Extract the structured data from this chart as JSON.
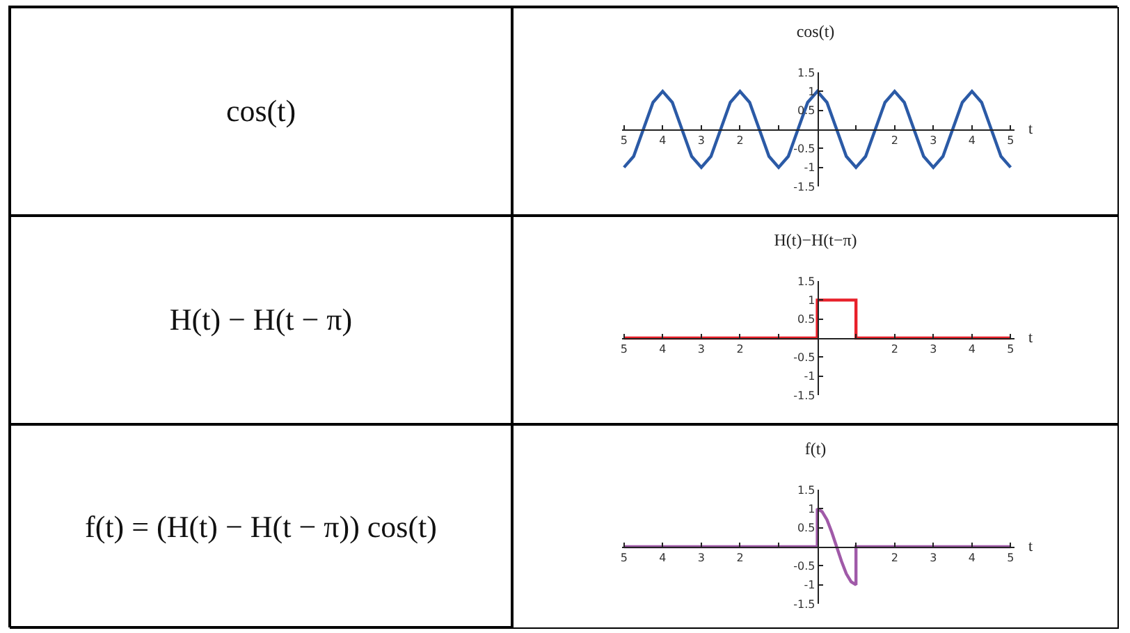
{
  "chart_data": [
    {
      "type": "other",
      "title": "cos(t)"
    },
    {
      "type": "line",
      "title": "cos(t)",
      "xlabel": "t",
      "xlim": [
        -5.05,
        5.1
      ],
      "ylim": [
        -1.5,
        1.5
      ],
      "xticks": [
        {
          "value": -5,
          "label": "5"
        },
        {
          "value": -4,
          "label": "4"
        },
        {
          "value": -3,
          "label": "3"
        },
        {
          "value": -2,
          "label": "2"
        },
        {
          "value": -1,
          "label": null
        },
        {
          "value": 1,
          "label": null
        },
        2,
        3,
        4,
        5
      ],
      "yticks": [
        -1.5,
        -1,
        -0.5,
        0.5,
        1,
        1.5
      ],
      "series": [
        {
          "color": "#2b5aa6",
          "x": [
            -5,
            -4.75,
            -4.5,
            -4.25,
            -4,
            -3.75,
            -3.5,
            -3.25,
            -3,
            -2.75,
            -2.5,
            -2.25,
            -2,
            -1.75,
            -1.5,
            -1.25,
            -1,
            -0.75,
            -0.5,
            -0.25,
            0,
            0.25,
            0.5,
            0.75,
            1,
            1.25,
            1.5,
            1.75,
            2,
            2.25,
            2.5,
            2.75,
            3,
            3.25,
            3.5,
            3.75,
            4,
            4.25,
            4.5,
            4.75,
            5
          ],
          "values": [
            -1,
            -0.71,
            0,
            0.71,
            1,
            0.71,
            0,
            -0.71,
            -1,
            -0.71,
            0,
            0.71,
            1,
            0.71,
            0,
            -0.71,
            -1,
            -0.71,
            0,
            0.71,
            1,
            0.71,
            0,
            -0.71,
            -1,
            -0.71,
            0,
            0.71,
            1,
            0.71,
            0,
            -0.71,
            -1,
            -0.71,
            0,
            0.71,
            1,
            0.71,
            0,
            -0.71,
            -1
          ]
        }
      ]
    },
    {
      "type": "other",
      "title": "H(t) − H(t − π)"
    },
    {
      "type": "line",
      "title": "H(t)−H(t−π)",
      "xlabel": "t",
      "xlim": [
        -5.05,
        5.1
      ],
      "ylim": [
        -1.5,
        1.5
      ],
      "xticks": [
        {
          "value": -5,
          "label": "5"
        },
        {
          "value": -4,
          "label": "4"
        },
        {
          "value": -3,
          "label": "3"
        },
        {
          "value": -2,
          "label": "2"
        },
        {
          "value": -1,
          "label": null
        },
        {
          "value": 1,
          "label": null
        },
        2,
        3,
        4,
        5
      ],
      "yticks": [
        -1.5,
        -1,
        -0.5,
        0.5,
        1,
        1.5
      ],
      "series": [
        {
          "color": "#e8202a",
          "x": [
            -5,
            0,
            0,
            1,
            1,
            5
          ],
          "values": [
            0,
            0,
            1,
            1,
            0,
            0
          ]
        }
      ]
    },
    {
      "type": "other",
      "title": "f(t) = (H(t) − H(t − π)) cos(t)"
    },
    {
      "type": "line",
      "title": "f(t)",
      "xlabel": "t",
      "xlim": [
        -5.05,
        5.1
      ],
      "ylim": [
        -1.5,
        1.5
      ],
      "xticks": [
        {
          "value": -5,
          "label": "5"
        },
        {
          "value": -4,
          "label": "4"
        },
        {
          "value": -3,
          "label": "3"
        },
        {
          "value": -2,
          "label": "2"
        },
        {
          "value": -1,
          "label": null
        },
        {
          "value": 1,
          "label": null
        },
        2,
        3,
        4,
        5
      ],
      "yticks": [
        -1.5,
        -1,
        -0.5,
        0.5,
        1,
        1.5
      ],
      "series": [
        {
          "color": "#a05aa8",
          "x": [
            -5,
            0,
            0,
            0.125,
            0.25,
            0.375,
            0.5,
            0.625,
            0.75,
            0.875,
            1,
            1,
            5
          ],
          "values": [
            0,
            0,
            1,
            0.92,
            0.71,
            0.38,
            0,
            -0.38,
            -0.71,
            -0.92,
            -1,
            0,
            0
          ]
        }
      ]
    }
  ]
}
